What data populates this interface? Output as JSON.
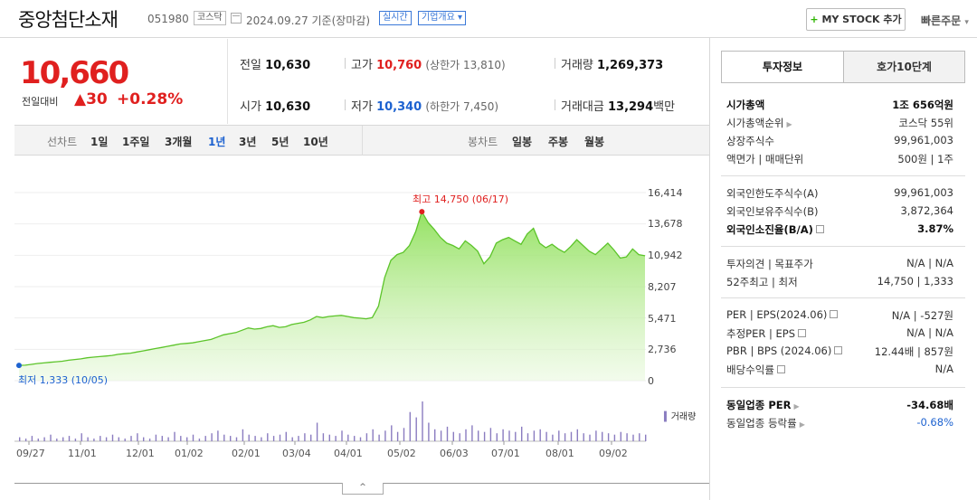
{
  "header": {
    "name": "중앙첨단소재",
    "code": "051980",
    "market": "코스닥",
    "date": "2024.09.27 기준(장마감)",
    "realtime": "실시간",
    "company_info": "기업개요",
    "mystock_label": "MY STOCK 추가",
    "quick_order": "빠른주문"
  },
  "price": {
    "current": "10,660",
    "diff_label": "전일대비",
    "diff_value": "30",
    "diff_pct": "+0.28%"
  },
  "summary": {
    "prev_label": "전일",
    "prev": "10,630",
    "high_label": "고가",
    "high": "10,760",
    "upper_limit": "(상한가 13,810)",
    "volume_label": "거래량",
    "volume": "1,269,373",
    "open_label": "시가",
    "open": "10,630",
    "low_label": "저가",
    "low": "10,340",
    "lower_limit": "(하한가 7,450)",
    "amount_label": "거래대금",
    "amount": "13,294",
    "amount_unit": "백만"
  },
  "period_bar": {
    "line_label": "선차트",
    "line_items": [
      "1일",
      "1주일",
      "3개월",
      "1년",
      "3년",
      "5년",
      "10년"
    ],
    "active": "1년",
    "candle_label": "봉차트",
    "candle_items": [
      "일봉",
      "주봉",
      "월봉"
    ]
  },
  "chart_data": {
    "type": "area",
    "x_ticks": [
      "09/27",
      "11/01",
      "12/01",
      "01/02",
      "02/01",
      "03/04",
      "04/01",
      "05/02",
      "06/03",
      "07/01",
      "08/01",
      "09/02"
    ],
    "y_ticks": [
      "16,414",
      "13,678",
      "10,942",
      "8,207",
      "5,471",
      "2,736",
      "0"
    ],
    "ylim": [
      0,
      16414
    ],
    "high_label": "최고 14,750 (06/17)",
    "low_label": "최저 1,333 (10/05)",
    "volume_label": "거래량",
    "series": [
      {
        "values": [
          1333,
          1350,
          1420,
          1500,
          1550,
          1600,
          1650,
          1700,
          1780,
          1850,
          1900,
          2000,
          2050,
          2100,
          2150,
          2200,
          2300,
          2350,
          2400,
          2500,
          2600,
          2700,
          2800,
          2900,
          3000,
          3100,
          3200,
          3250,
          3300,
          3400,
          3500,
          3600,
          3800,
          4000,
          4100,
          4200,
          4400,
          4600,
          4500,
          4550,
          4700,
          4800,
          4650,
          4700,
          4900,
          5000,
          5100,
          5300,
          5600,
          5500,
          5600,
          5650,
          5700,
          5600,
          5500,
          5450,
          5400,
          5500,
          6500,
          9000,
          10500,
          11000,
          11200,
          11800,
          13000,
          14750,
          13800,
          13200,
          12500,
          12000,
          11800,
          11500,
          12200,
          11800,
          11300,
          10200,
          10800,
          12000,
          12300,
          12500,
          12200,
          11900,
          12800,
          13300,
          12000,
          11600,
          11900,
          11500,
          11200,
          11700,
          12300,
          11800,
          11300,
          11000,
          11500,
          12000,
          11400,
          10700,
          10800,
          11500,
          11000,
          10900
        ]
      }
    ],
    "volume": [
      3,
      2,
      4,
      2,
      3,
      5,
      2,
      3,
      4,
      2,
      6,
      3,
      2,
      4,
      3,
      5,
      3,
      2,
      4,
      6,
      3,
      2,
      5,
      4,
      3,
      7,
      4,
      3,
      5,
      2,
      4,
      6,
      8,
      5,
      4,
      3,
      9,
      5,
      4,
      3,
      6,
      4,
      5,
      7,
      3,
      4,
      6,
      5,
      14,
      6,
      5,
      4,
      8,
      5,
      4,
      3,
      6,
      9,
      5,
      8,
      12,
      7,
      10,
      22,
      18,
      30,
      14,
      9,
      8,
      11,
      7,
      6,
      9,
      12,
      8,
      7,
      10,
      6,
      9,
      8,
      7,
      11,
      6,
      8,
      9,
      7,
      5,
      8,
      6,
      7,
      9,
      6,
      5,
      8,
      7,
      6,
      5,
      7,
      6,
      5,
      6,
      5
    ]
  },
  "info": {
    "tab_active": "투자정보",
    "tab_other": "호가10단계",
    "rows1": [
      {
        "label": "시가총액",
        "value": "1조 656억원",
        "bold": true
      },
      {
        "label": "시가총액순위",
        "value": "코스닥 55위"
      },
      {
        "label": "상장주식수",
        "value": "99,961,003"
      },
      {
        "label": "액면가 | 매매단위",
        "value": "500원 | 1주"
      }
    ],
    "rows2": [
      {
        "label": "외국인한도주식수(A)",
        "value": "99,961,003"
      },
      {
        "label": "외국인보유주식수(B)",
        "value": "3,872,364"
      },
      {
        "label": "외국인소진율(B/A)",
        "value": "3.87%",
        "bold": true
      }
    ],
    "rows3": [
      {
        "label": "투자의견 | 목표주가",
        "value": "N/A | N/A"
      },
      {
        "label": "52주최고 | 최저",
        "value": "14,750 | 1,333"
      }
    ],
    "rows4": [
      {
        "label": "PER | EPS(2024.06)",
        "value": "N/A | -527원"
      },
      {
        "label": "추정PER | EPS",
        "value": "N/A | N/A"
      },
      {
        "label": "PBR | BPS (2024.06)",
        "value": "12.44배 | 857원"
      },
      {
        "label": "배당수익률",
        "value": "N/A"
      }
    ],
    "rows5": [
      {
        "label": "동일업종 PER",
        "value": "-34.68배",
        "bold": true
      },
      {
        "label": "동일업종 등락률",
        "value": "-0.68%"
      }
    ]
  },
  "toggle_label": "^"
}
